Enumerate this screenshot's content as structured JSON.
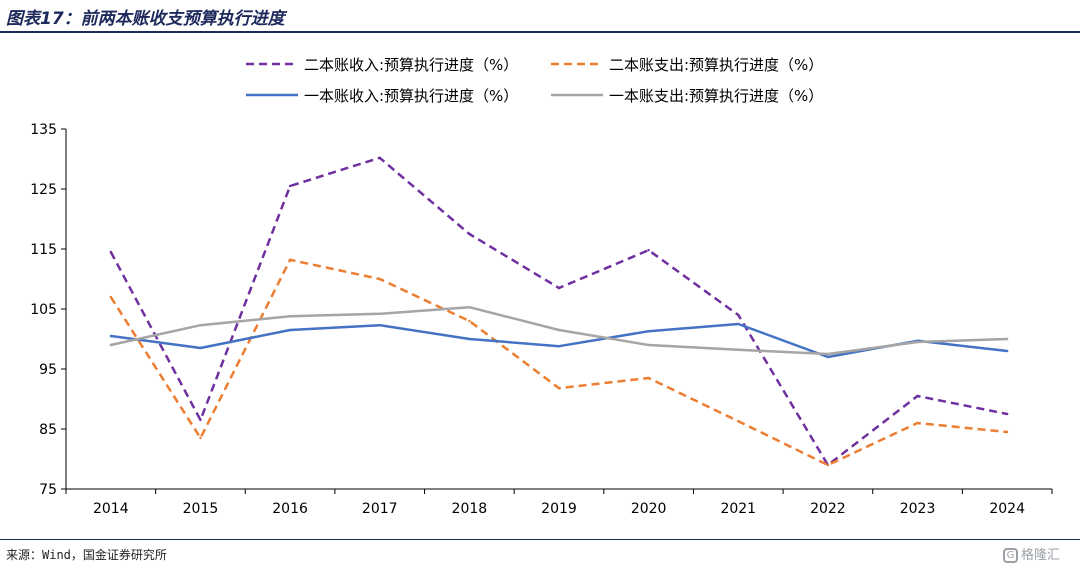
{
  "header": {
    "title": "图表17：前两本账收支预算执行进度"
  },
  "footer": {
    "source": "来源：Wind，国金证券研究所",
    "logo_text": "格隆汇",
    "logo_mark": "G"
  },
  "chart_data": {
    "type": "line",
    "x": [
      "2014",
      "2015",
      "2016",
      "2017",
      "2018",
      "2019",
      "2020",
      "2021",
      "2022",
      "2023",
      "2024"
    ],
    "yticks": [
      "75",
      "85",
      "95",
      "105",
      "115",
      "125",
      "135"
    ],
    "ylim": [
      75,
      135
    ],
    "grid": false,
    "legend_position": "top",
    "series": [
      {
        "name": "二本账收入:预算执行进度（%）",
        "color": "#7030a0",
        "dashed": true,
        "values": [
          114.5,
          86.5,
          125.5,
          130.2,
          117.5,
          108.5,
          114.8,
          104.0,
          79.0,
          90.5,
          87.5
        ]
      },
      {
        "name": "二本账支出:预算执行进度（%）",
        "color": "#ed7d31",
        "dashed": true,
        "values": [
          107.0,
          83.5,
          113.2,
          110.0,
          103.0,
          91.8,
          93.5,
          86.3,
          79.0,
          86.0,
          84.5
        ]
      },
      {
        "name": "一本账收入:预算执行进度（%）",
        "color": "#4472c4",
        "dashed": false,
        "values": [
          100.5,
          98.5,
          101.5,
          102.3,
          100.0,
          98.8,
          101.3,
          102.5,
          97.0,
          99.7,
          98.0
        ]
      },
      {
        "name": "一本账支出:预算执行进度（%）",
        "color": "#a5a5a5",
        "dashed": false,
        "values": [
          99.0,
          102.3,
          103.8,
          104.2,
          105.3,
          101.5,
          99.0,
          98.2,
          97.5,
          99.5,
          100.0
        ]
      }
    ]
  }
}
